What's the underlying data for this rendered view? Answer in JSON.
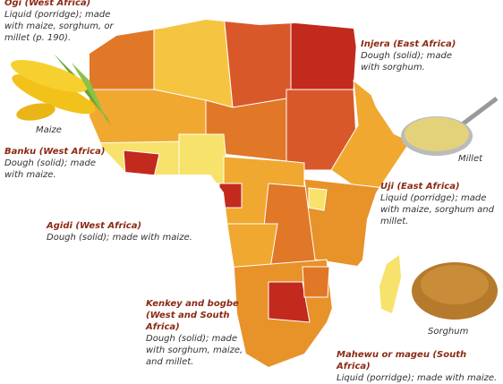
{
  "labels": [
    {
      "title": "Ogi (West Africa)",
      "description": "Liquid (porridge); made with maize, sorghum, or millet (p. 190)."
    },
    {
      "title": "Injera (East Africa)",
      "description": "Dough (solid); made with sorghum."
    },
    {
      "title": "Banku (West Africa)",
      "description": "Dough (solid); made with maize."
    },
    {
      "title": "Uji (East Africa)",
      "description": "Liquid (porridge); made with maize, sorghum and millet."
    },
    {
      "title": "Agidi (West Africa)",
      "description": "Dough (solid); made with maize."
    },
    {
      "title": "Kenkey and bogbe (West and South Africa)",
      "description": "Dough (solid); made with sorghum, maize, and millet."
    },
    {
      "title": "Mahewu or mageu (South Africa)",
      "description": "Liquid (porridge); made with maize."
    }
  ],
  "image_captions": [
    "Maize",
    "Millet",
    "Sorghum"
  ]
}
